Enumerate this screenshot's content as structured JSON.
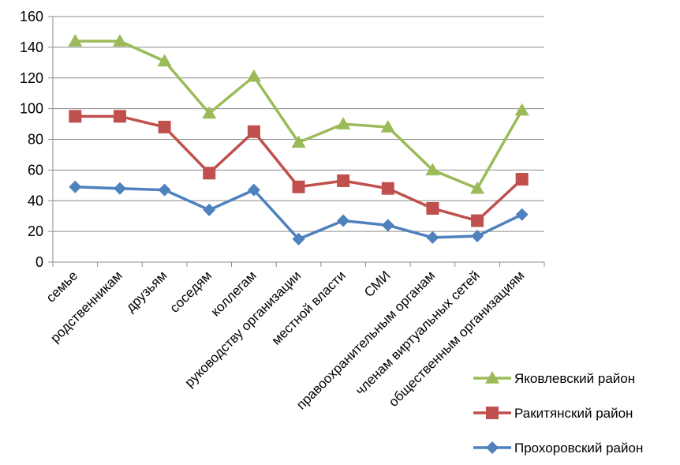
{
  "chart_data": {
    "type": "line",
    "title": "",
    "xlabel": "",
    "ylabel": "",
    "ylim": [
      0,
      160
    ],
    "yticks": [
      0,
      20,
      40,
      60,
      80,
      100,
      120,
      140,
      160
    ],
    "grid": true,
    "legend_position": "bottom-right",
    "categories": [
      "семье",
      "родственникам",
      "друзьям",
      "соседям",
      "коллегам",
      "руководству организации",
      "местной власти",
      "СМИ",
      "правоохранительным органам",
      "членам виртуальных сетей",
      "общественным организациям"
    ],
    "series": [
      {
        "name": "Яковлевский район",
        "color": "#9bbb59",
        "marker": "triangle",
        "values": [
          144,
          144,
          131,
          97,
          121,
          78,
          90,
          88,
          60,
          48,
          99
        ]
      },
      {
        "name": "Ракитянский район",
        "color": "#c0504d",
        "marker": "square",
        "values": [
          95,
          95,
          88,
          58,
          85,
          49,
          53,
          48,
          35,
          27,
          54
        ]
      },
      {
        "name": "Прохоровский район",
        "color": "#4f81bd",
        "marker": "diamond",
        "values": [
          49,
          48,
          47,
          34,
          47,
          15,
          27,
          24,
          16,
          17,
          31
        ]
      }
    ]
  }
}
